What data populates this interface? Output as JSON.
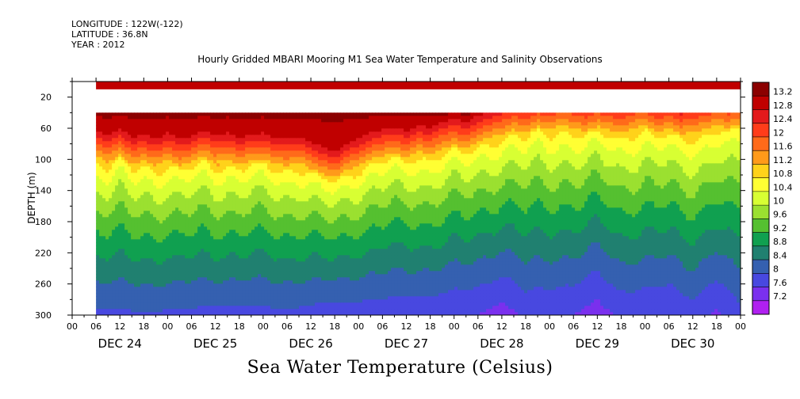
{
  "meta": {
    "longitude": "LONGITUDE : 122W(-122)",
    "latitude": "LATITUDE : 36.8N",
    "year": "YEAR : 2012"
  },
  "chart_data": {
    "type": "heatmap",
    "title": "Hourly Gridded MBARI Mooring M1 Sea Water Temperature and Salinity Observations",
    "bottom_title": "Sea Water Temperature (Celsius)",
    "ylabel": "DEPTH (m)",
    "ylim": [
      300,
      0
    ],
    "y_ticks": [
      "20",
      "60",
      "100",
      "140",
      "180",
      "220",
      "260",
      "300"
    ],
    "y_tick_values": [
      20,
      60,
      100,
      140,
      180,
      220,
      260,
      300
    ],
    "x_hour_labels": [
      "00",
      "06",
      "12",
      "18",
      "00",
      "06",
      "12",
      "18",
      "00",
      "06",
      "12",
      "18",
      "00",
      "06",
      "12",
      "18",
      "00",
      "06",
      "12",
      "18",
      "00",
      "06",
      "12",
      "18",
      "00",
      "06",
      "12",
      "18",
      "00"
    ],
    "x_day_labels": [
      "DEC 24",
      "DEC 25",
      "DEC 26",
      "DEC 27",
      "DEC 28",
      "DEC 29",
      "DEC 30"
    ],
    "x_range_hours": [
      0,
      168
    ],
    "data_start_hour": 6,
    "missing_depth_band": [
      20,
      40
    ],
    "surface_band": {
      "depth": [
        0,
        10
      ],
      "temperature": 13.0
    },
    "colorbar_labels": [
      "13.2",
      "12.8",
      "12.4",
      "12",
      "11.6",
      "11.2",
      "10.8",
      "10.4",
      "10",
      "9.6",
      "9.2",
      "8.8",
      "8.4",
      "8",
      "7.6",
      "7.2"
    ],
    "colorbar_values": [
      13.2,
      12.8,
      12.4,
      12.0,
      11.6,
      11.2,
      10.8,
      10.4,
      10.0,
      9.6,
      9.2,
      8.8,
      8.4,
      8.0,
      7.6,
      7.2
    ],
    "colorbar_colors": [
      "#8b0000",
      "#c00000",
      "#e31a1c",
      "#ff3c1a",
      "#ff6a1a",
      "#ff9a1a",
      "#ffd21a",
      "#ffff33",
      "#d8ff33",
      "#9be030",
      "#55c030",
      "#10a050",
      "#208070",
      "#3560b0",
      "#4848e0",
      "#7a30ee",
      "#b020f0"
    ],
    "thermocline_depth": [
      [
        6,
        100
      ],
      [
        9,
        108
      ],
      [
        12,
        98
      ],
      [
        15,
        110
      ],
      [
        18,
        106
      ],
      [
        21,
        112
      ],
      [
        24,
        104
      ],
      [
        27,
        112
      ],
      [
        30,
        108
      ],
      [
        33,
        100
      ],
      [
        36,
        108
      ],
      [
        39,
        104
      ],
      [
        42,
        110
      ],
      [
        45,
        106
      ],
      [
        48,
        104
      ],
      [
        51,
        110
      ],
      [
        54,
        112
      ],
      [
        57,
        108
      ],
      [
        60,
        116
      ],
      [
        63,
        122
      ],
      [
        66,
        128
      ],
      [
        69,
        118
      ],
      [
        72,
        112
      ],
      [
        75,
        104
      ],
      [
        78,
        100
      ],
      [
        81,
        96
      ],
      [
        84,
        102
      ],
      [
        87,
        94
      ],
      [
        90,
        98
      ],
      [
        93,
        90
      ],
      [
        96,
        86
      ],
      [
        99,
        90
      ],
      [
        102,
        82
      ],
      [
        105,
        76
      ],
      [
        108,
        72
      ],
      [
        111,
        66
      ],
      [
        114,
        70
      ],
      [
        117,
        62
      ],
      [
        120,
        66
      ],
      [
        123,
        60
      ],
      [
        126,
        64
      ],
      [
        129,
        68
      ],
      [
        132,
        62
      ],
      [
        135,
        66
      ],
      [
        138,
        70
      ],
      [
        141,
        64
      ],
      [
        144,
        60
      ],
      [
        147,
        70
      ],
      [
        150,
        64
      ],
      [
        153,
        72
      ],
      [
        156,
        68
      ],
      [
        159,
        66
      ],
      [
        162,
        60
      ],
      [
        165,
        64
      ],
      [
        168,
        58
      ]
    ],
    "deep_temperature_300m": [
      [
        6,
        7.9
      ],
      [
        18,
        7.95
      ],
      [
        30,
        7.9
      ],
      [
        42,
        7.85
      ],
      [
        54,
        7.9
      ],
      [
        66,
        7.8
      ],
      [
        78,
        7.75
      ],
      [
        90,
        7.7
      ],
      [
        102,
        7.6
      ],
      [
        108,
        7.4
      ],
      [
        114,
        7.7
      ],
      [
        126,
        7.6
      ],
      [
        132,
        7.4
      ],
      [
        138,
        7.7
      ],
      [
        150,
        7.6
      ],
      [
        156,
        7.8
      ],
      [
        162,
        7.5
      ],
      [
        168,
        7.9
      ]
    ]
  }
}
